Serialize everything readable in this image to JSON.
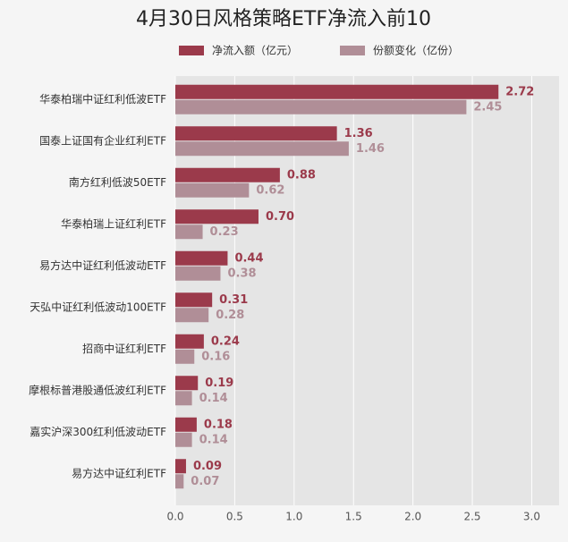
{
  "chart_data": {
    "type": "barh",
    "title": "4月30日风格策略ETF净流入前10",
    "categories": [
      "华泰柏瑞中证红利低波ETF",
      "国泰上证国有企业红利ETF",
      "南方红利低波50ETF",
      "华泰柏瑞上证红利ETF",
      "易方达中证红利低波动ETF",
      "天弘中证红利低波动100ETF",
      "招商中证红利ETF",
      "摩根标普港股通低波红利ETF",
      "嘉实沪深300红利低波动ETF",
      "易方达中证红利ETF"
    ],
    "series": [
      {
        "name": "净流入额（亿元）",
        "color": "#9b3a4b",
        "values": [
          2.72,
          1.36,
          0.88,
          0.7,
          0.44,
          0.31,
          0.24,
          0.19,
          0.18,
          0.09
        ],
        "value_labels": [
          "2.72",
          "1.36",
          "0.88",
          "0.70",
          "0.44",
          "0.31",
          "0.24",
          "0.19",
          "0.18",
          "0.09"
        ]
      },
      {
        "name": "份额变化（亿份）",
        "color": "#b08e97",
        "values": [
          2.45,
          1.46,
          0.62,
          0.23,
          0.38,
          0.28,
          0.16,
          0.14,
          0.14,
          0.07
        ],
        "value_labels": [
          "2.45",
          "1.46",
          "0.62",
          "0.23",
          "0.38",
          "0.28",
          "0.16",
          "0.14",
          "0.14",
          "0.07"
        ]
      }
    ],
    "xlim": [
      0,
      3.23
    ],
    "xticks": [
      {
        "value": 0,
        "label": "0.0"
      },
      0.5,
      {
        "value": 1,
        "label": "1.0"
      },
      1.5,
      {
        "value": 2,
        "label": "2.0"
      },
      2.5,
      {
        "value": 3,
        "label": "3.0"
      }
    ],
    "grid": true
  }
}
